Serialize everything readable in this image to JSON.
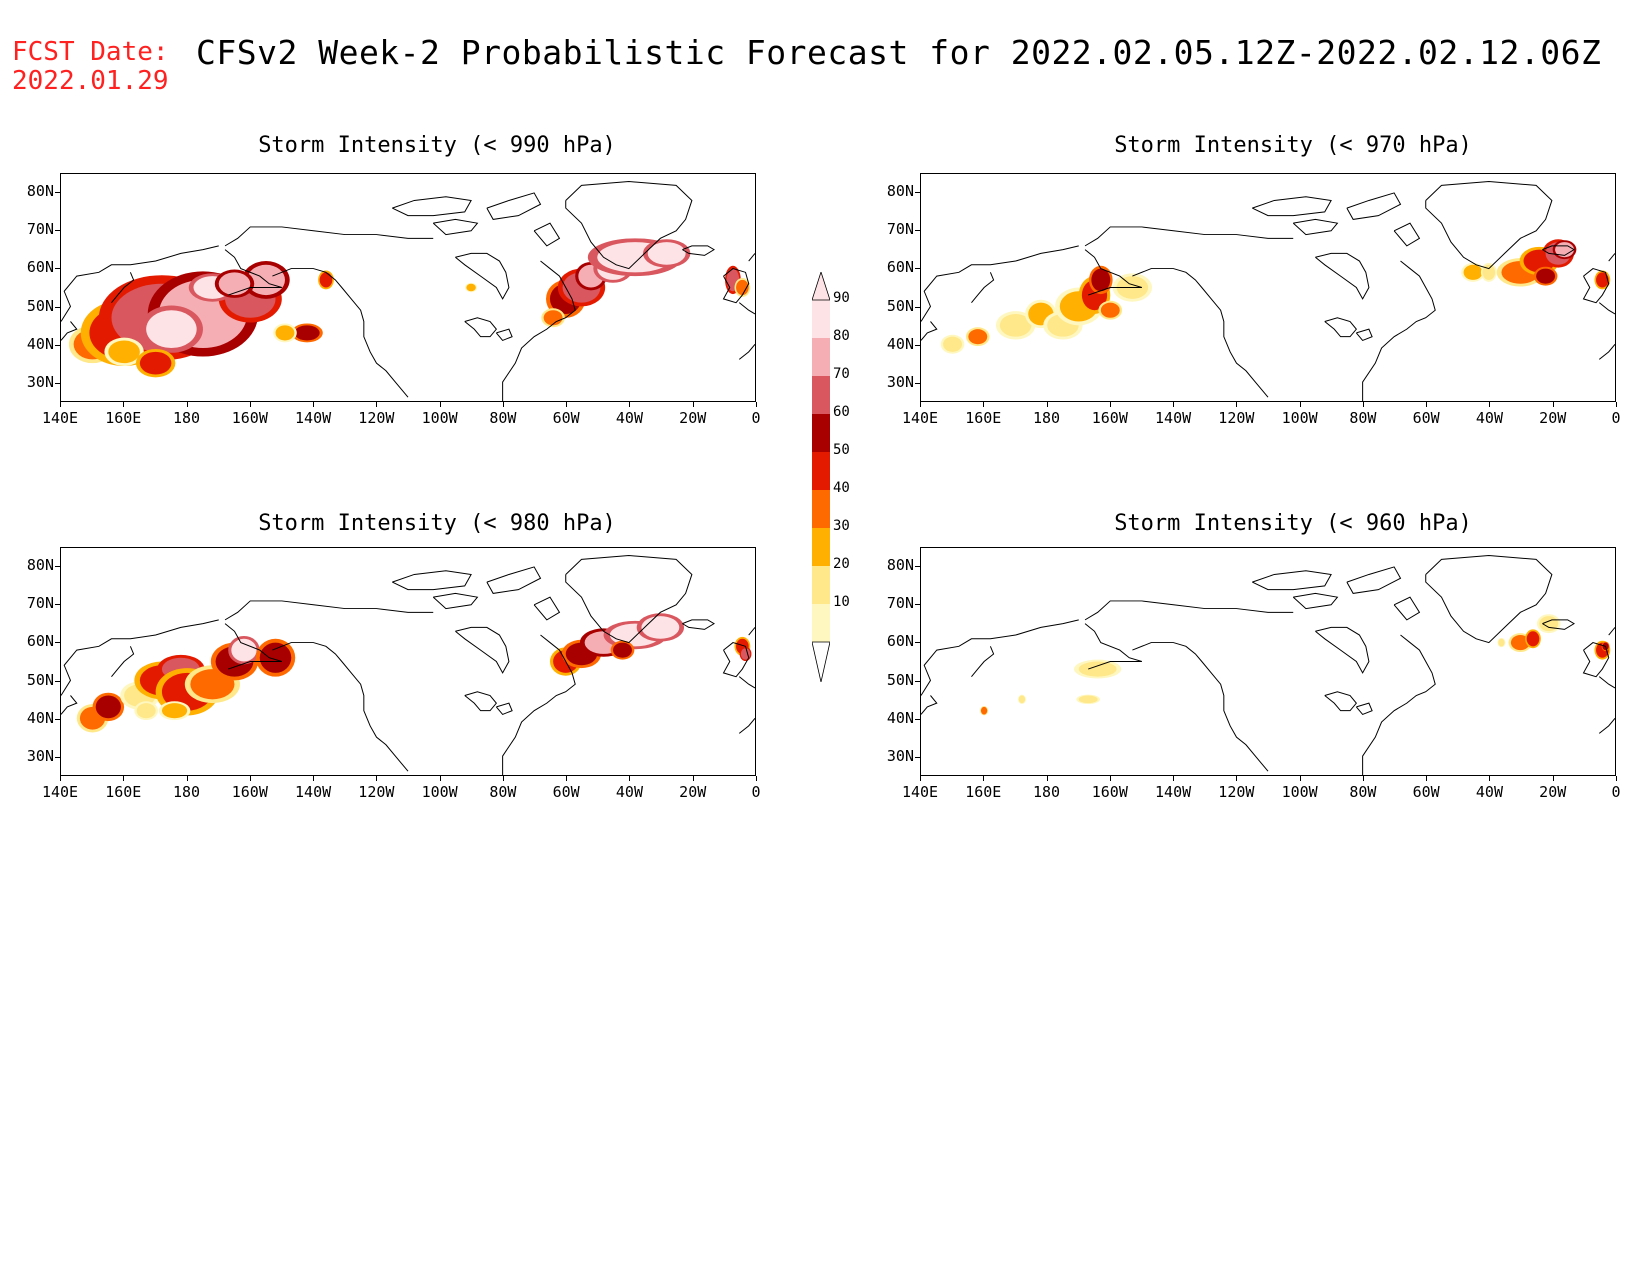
{
  "header": {
    "fcst_label": "FCST Date:",
    "fcst_date": "2022.01.29",
    "title": "CFSv2 Week-2 Probabilistic Forecast for 2022.02.05.12Z-2022.02.12.06Z"
  },
  "axes": {
    "lat_labels": [
      "80N",
      "70N",
      "60N",
      "50N",
      "40N",
      "30N"
    ],
    "lon_labels": [
      "140E",
      "160E",
      "180",
      "160W",
      "140W",
      "120W",
      "100W",
      "80W",
      "60W",
      "40W",
      "20W",
      "0"
    ]
  },
  "panels": [
    {
      "id": "p990",
      "title": "Storm Intensity (< 990 hPa)"
    },
    {
      "id": "p970",
      "title": "Storm Intensity (< 970 hPa)"
    },
    {
      "id": "p980",
      "title": "Storm Intensity (< 980 hPa)"
    },
    {
      "id": "p960",
      "title": "Storm Intensity (< 960 hPa)"
    }
  ],
  "colorbar": {
    "levels": [
      "10",
      "20",
      "30",
      "40",
      "50",
      "60",
      "70",
      "80",
      "90"
    ],
    "colors": [
      "#fff7c0",
      "#ffe88a",
      "#ffb000",
      "#ff6a00",
      "#e41a00",
      "#a80000",
      "#d9575e",
      "#f5aeb4",
      "#fde3e6"
    ]
  }
}
